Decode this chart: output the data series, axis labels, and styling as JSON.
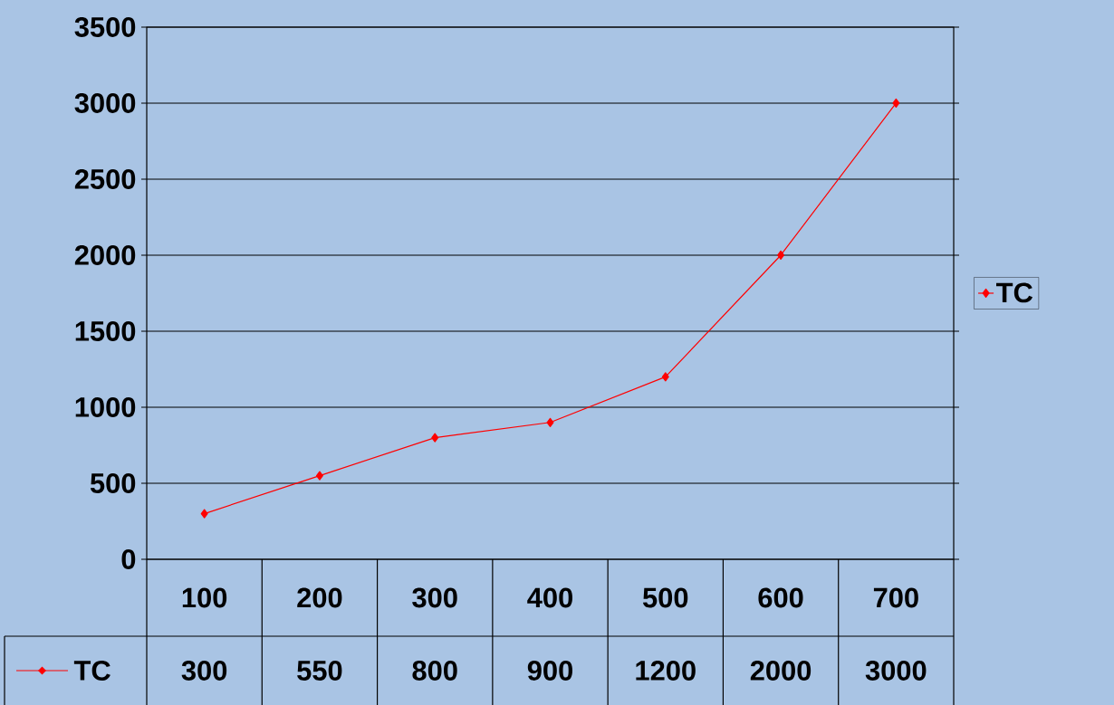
{
  "chart_data": {
    "type": "line",
    "categories": [
      "100",
      "200",
      "300",
      "400",
      "500",
      "600",
      "700"
    ],
    "series": [
      {
        "name": "TC",
        "color": "#ff0000",
        "values": [
          300,
          550,
          800,
          900,
          1200,
          2000,
          3000
        ]
      }
    ],
    "ylim": [
      0,
      3500
    ],
    "yticks": [
      0,
      500,
      1000,
      1500,
      2000,
      2500,
      3000,
      3500
    ],
    "grid": "y",
    "legend": "right",
    "marker": "diamond",
    "line_style": "solid",
    "data_labels": true
  }
}
